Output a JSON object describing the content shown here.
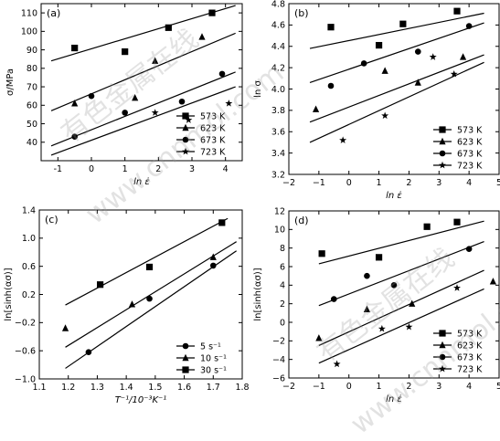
{
  "watermark": {
    "site": "www.cnnmol.com",
    "cn": "有色金属在线"
  },
  "chart_data": [
    {
      "panel": "(a)",
      "type": "scatter",
      "ylabel": "σ/MPa",
      "xlabel": "ln ε̇",
      "xlim": [
        -1.5,
        4.5
      ],
      "ylim": [
        30,
        115
      ],
      "xticks": [
        -1,
        0,
        1,
        2,
        3,
        4
      ],
      "yticks": [
        40,
        50,
        60,
        70,
        80,
        90,
        100,
        110
      ],
      "xtick_labels": [
        "-1",
        "0",
        "1",
        "2",
        "3",
        "4"
      ],
      "ytick_labels": [
        "40",
        "50",
        "60",
        "70",
        "80",
        "90",
        "100",
        "110"
      ],
      "legend": [
        "573 K",
        "623 K",
        "673 K",
        "723 K"
      ],
      "legend_position": "bottom-right",
      "series": [
        {
          "name": "573 K",
          "marker": "square",
          "x": [
            -0.5,
            1.0,
            2.3,
            3.6
          ],
          "y": [
            91,
            89,
            102,
            110
          ],
          "fit": [
            [
              -1.2,
              84
            ],
            [
              4.3,
              114
            ]
          ]
        },
        {
          "name": "623 K",
          "marker": "triangle",
          "x": [
            -0.5,
            1.3,
            1.9,
            3.3
          ],
          "y": [
            61,
            64,
            84,
            97
          ],
          "fit": [
            [
              -1.2,
              57
            ],
            [
              4.3,
              99
            ]
          ]
        },
        {
          "name": "673 K",
          "marker": "circle",
          "x": [
            -0.5,
            0.0,
            1.0,
            2.7,
            3.9
          ],
          "y": [
            43,
            65,
            56,
            62,
            77
          ],
          "fit": [
            [
              -1.2,
              38
            ],
            [
              4.3,
              78
            ]
          ]
        },
        {
          "name": "723 K",
          "marker": "star",
          "x": [
            1.9,
            2.9,
            4.1
          ],
          "y": [
            56,
            52,
            61
          ],
          "fit": [
            [
              -1.2,
              33
            ],
            [
              4.3,
              70
            ]
          ]
        }
      ]
    },
    {
      "panel": "(b)",
      "type": "scatter",
      "ylabel": "ln σ",
      "xlabel": "ln ε̇",
      "xlim": [
        -2,
        5
      ],
      "ylim": [
        3.2,
        4.8
      ],
      "xticks": [
        -2,
        -1,
        0,
        1,
        2,
        3,
        4,
        5
      ],
      "yticks": [
        3.2,
        3.4,
        3.6,
        3.8,
        4.0,
        4.2,
        4.4,
        4.6,
        4.8
      ],
      "xtick_labels": [
        "−2",
        "−1",
        "0",
        "1",
        "2",
        "3",
        "4",
        "5"
      ],
      "ytick_labels": [
        "3.2",
        "3.4",
        "3.6",
        "3.8",
        "4.0",
        "4.2",
        "4.4",
        "4.6",
        "4.8"
      ],
      "legend": [
        "573 K",
        "623 K",
        "673 K",
        "723 K"
      ],
      "legend_position": "bottom-right",
      "series": [
        {
          "name": "573 K",
          "marker": "square",
          "x": [
            -0.6,
            1.0,
            1.8,
            3.6
          ],
          "y": [
            4.58,
            4.41,
            4.61,
            4.73
          ],
          "fit": [
            [
              -1.3,
              4.38
            ],
            [
              4.5,
              4.71
            ]
          ]
        },
        {
          "name": "623 K",
          "marker": "triangle",
          "x": [
            -1.1,
            1.2,
            2.3,
            3.8
          ],
          "y": [
            3.81,
            4.17,
            4.06,
            4.3
          ],
          "fit": [
            [
              -1.3,
              4.06
            ],
            [
              4.5,
              4.62
            ]
          ]
        },
        {
          "name": "673 K",
          "marker": "circle",
          "x": [
            -0.6,
            0.5,
            2.3,
            4.0
          ],
          "y": [
            4.03,
            4.24,
            4.35,
            4.59
          ],
          "fit": [
            [
              -1.3,
              3.69
            ],
            [
              4.5,
              4.32
            ]
          ]
        },
        {
          "name": "723 K",
          "marker": "star",
          "x": [
            -0.2,
            1.2,
            2.8,
            3.5
          ],
          "y": [
            3.52,
            3.75,
            4.3,
            4.14
          ],
          "fit": [
            [
              -1.3,
              3.5
            ],
            [
              4.5,
              4.25
            ]
          ]
        }
      ]
    },
    {
      "panel": "(c)",
      "type": "scatter",
      "ylabel": "ln[sinh(ασ)]",
      "xlabel": "T⁻¹/10⁻³K⁻¹",
      "xlim": [
        1.1,
        1.8
      ],
      "ylim": [
        -1.0,
        1.4
      ],
      "xticks": [
        1.1,
        1.2,
        1.3,
        1.4,
        1.5,
        1.6,
        1.7,
        1.8
      ],
      "yticks": [
        -1.0,
        -0.6,
        -0.2,
        0.2,
        0.6,
        1.0,
        1.4
      ],
      "xtick_labels": [
        "1.1",
        "1.2",
        "1.3",
        "1.4",
        "1.5",
        "1.6",
        "1.7",
        "1.8"
      ],
      "ytick_labels": [
        "−1.0",
        "−0.6",
        "−0.2",
        "0.2",
        "0.6",
        "1.0",
        "1.4"
      ],
      "legend": [
        "5 s⁻¹",
        "10 s⁻¹",
        "30 s⁻¹"
      ],
      "legend_position": "bottom-right",
      "series": [
        {
          "name": "5 s⁻¹",
          "marker": "circle",
          "x": [
            1.27,
            1.48,
            1.7
          ],
          "y": [
            -0.62,
            0.14,
            0.61
          ],
          "fit": [
            [
              1.19,
              -0.85
            ],
            [
              1.78,
              0.82
            ]
          ]
        },
        {
          "name": "10 s⁻¹",
          "marker": "triangle",
          "x": [
            1.19,
            1.42,
            1.7
          ],
          "y": [
            -0.28,
            0.06,
            0.73
          ],
          "fit": [
            [
              1.19,
              -0.55
            ],
            [
              1.78,
              0.95
            ]
          ]
        },
        {
          "name": "30 s⁻¹",
          "marker": "square",
          "x": [
            1.31,
            1.48,
            1.73
          ],
          "y": [
            0.34,
            0.59,
            1.22
          ],
          "fit": [
            [
              1.19,
              0.05
            ],
            [
              1.75,
              1.28
            ]
          ]
        }
      ]
    },
    {
      "panel": "(d)",
      "type": "scatter",
      "ylabel": "ln[sinh(ασ)]",
      "xlabel": "ln ε̇",
      "xlim": [
        -2,
        5
      ],
      "ylim": [
        -6,
        12
      ],
      "xticks": [
        -2,
        -1,
        0,
        1,
        2,
        3,
        4,
        5
      ],
      "yticks": [
        -6,
        -4,
        -2,
        0,
        2,
        4,
        6,
        8,
        10,
        12
      ],
      "xtick_labels": [
        "−2",
        "−1",
        "0",
        "1",
        "2",
        "3",
        "4",
        "5"
      ],
      "ytick_labels": [
        "−6",
        "−4",
        "−2",
        "0",
        "2",
        "4",
        "6",
        "8",
        "10",
        "12"
      ],
      "legend": [
        "573 K",
        "623 K",
        "673 K",
        "723 K"
      ],
      "legend_position": "bottom-right",
      "series": [
        {
          "name": "573 K",
          "marker": "square",
          "x": [
            -0.9,
            1.0,
            2.6,
            3.6
          ],
          "y": [
            7.4,
            7.0,
            10.3,
            10.8
          ],
          "fit": [
            [
              -1.0,
              6.3
            ],
            [
              4.5,
              10.9
            ]
          ]
        },
        {
          "name": "623 K",
          "marker": "triangle",
          "x": [
            -1.0,
            0.6,
            2.1,
            4.8
          ],
          "y": [
            -1.7,
            1.4,
            2.0,
            4.4
          ],
          "fit": [
            [
              -1.0,
              -2.5
            ],
            [
              4.5,
              5.6
            ]
          ]
        },
        {
          "name": "673 K",
          "marker": "circle",
          "x": [
            -0.5,
            0.6,
            1.5,
            4.0
          ],
          "y": [
            2.5,
            5.0,
            4.0,
            7.9
          ],
          "fit": [
            [
              -1.0,
              1.8
            ],
            [
              4.5,
              8.7
            ]
          ]
        },
        {
          "name": "723 K",
          "marker": "star",
          "x": [
            -0.4,
            1.1,
            2.0,
            3.6
          ],
          "y": [
            -4.5,
            -0.7,
            -0.5,
            3.7
          ],
          "fit": [
            [
              -1.0,
              -4.4
            ],
            [
              4.5,
              3.6
            ]
          ]
        }
      ]
    }
  ]
}
